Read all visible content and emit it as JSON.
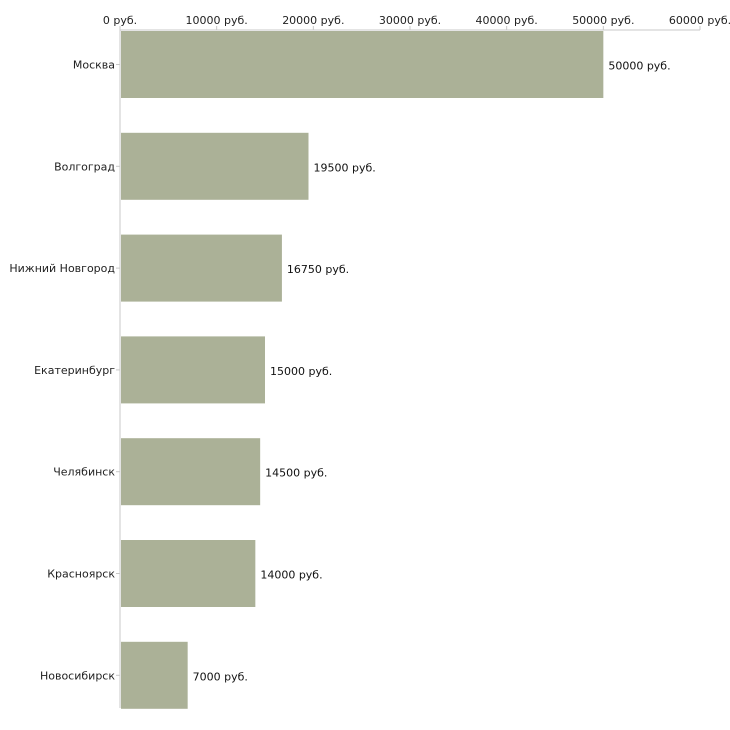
{
  "chart_data": {
    "type": "bar",
    "orientation": "horizontal",
    "title": "",
    "xlabel": "",
    "ylabel": "",
    "xlim": [
      0,
      60000
    ],
    "x_ticks": [
      0,
      10000,
      20000,
      30000,
      40000,
      50000,
      60000
    ],
    "x_tick_labels": [
      "0 руб.",
      "10000 руб.",
      "20000 руб.",
      "30000 руб.",
      "40000 руб.",
      "50000 руб.",
      "60000 руб."
    ],
    "categories": [
      "Москва",
      "Волгоград",
      "Нижний Новгород",
      "Екатеринбург",
      "Челябинск",
      "Красноярск",
      "Новосибирск"
    ],
    "values": [
      50000,
      19500,
      16750,
      15000,
      14500,
      14000,
      7000
    ],
    "value_labels": [
      "50000 руб.",
      "19500 руб.",
      "16750 руб.",
      "15000 руб.",
      "14500 руб.",
      "14000 руб.",
      "7000 руб."
    ],
    "bar_color": "#abb197",
    "grid": false,
    "legend": "none"
  }
}
